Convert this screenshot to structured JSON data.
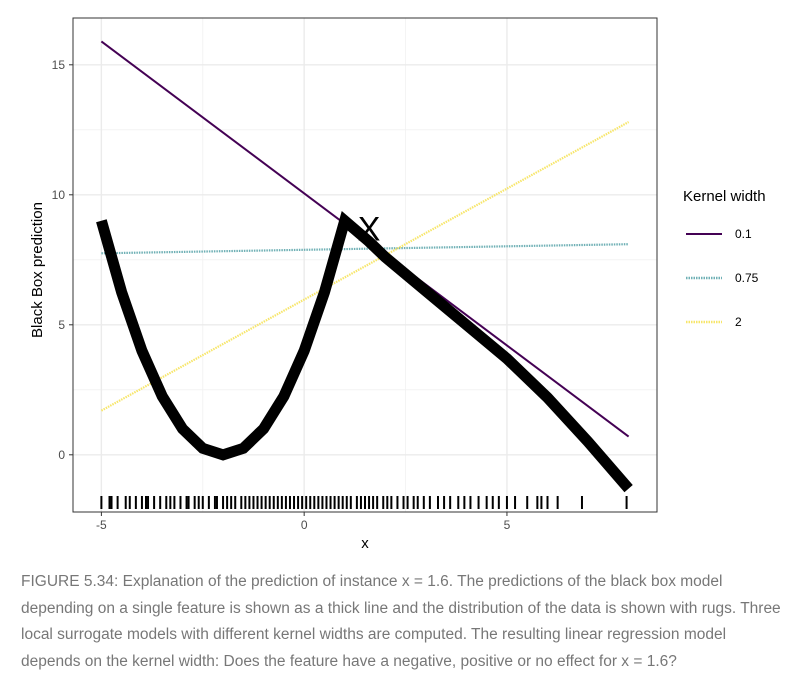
{
  "chart_data": {
    "type": "line",
    "xlabel": "x",
    "ylabel": "Black Box prediction",
    "xlim": [
      -5.7,
      8.7
    ],
    "ylim": [
      -2.2,
      16.8
    ],
    "x_ticks": [
      -5,
      0,
      5
    ],
    "y_ticks": [
      0,
      5,
      10,
      15
    ],
    "x_tick_labels": [
      "-5",
      "0",
      "5"
    ],
    "y_tick_labels": [
      "0",
      "5",
      "10",
      "15"
    ],
    "grid": true,
    "legend": {
      "title": "Kernel width",
      "placement": "right",
      "entries": [
        {
          "label": "0.1",
          "color": "#440154",
          "style": "solid"
        },
        {
          "label": "0.75",
          "color": "#6fb0b5",
          "style": "dotted"
        },
        {
          "label": "2",
          "color": "#f7e66a",
          "style": "dotted"
        }
      ]
    },
    "black_box": {
      "color": "#000000",
      "style": "thick",
      "x": [
        -5,
        -4.5,
        -4,
        -3.5,
        -3,
        -2.5,
        -2,
        -1.5,
        -1,
        -0.5,
        0,
        0.5,
        1,
        1.6,
        2,
        3,
        4,
        5,
        6,
        7,
        8
      ],
      "y": [
        9,
        6.25,
        4,
        2.25,
        1,
        0.25,
        0,
        0.25,
        1,
        2.25,
        4,
        6.25,
        9,
        8.2,
        7.6,
        6.3,
        5.0,
        3.7,
        2.2,
        0.5,
        -1.3
      ]
    },
    "series": [
      {
        "name": "0.1",
        "x": [
          -5,
          8
        ],
        "y": [
          15.9,
          0.7
        ]
      },
      {
        "name": "0.75",
        "x": [
          -5,
          8
        ],
        "y": [
          7.75,
          8.1
        ]
      },
      {
        "name": "2",
        "x": [
          -5,
          8
        ],
        "y": [
          1.7,
          12.8
        ]
      }
    ],
    "instance": {
      "label": "X",
      "x": 1.6,
      "y": 8.7
    },
    "rug_x": [
      -5.0,
      -4.8,
      -4.75,
      -4.6,
      -4.4,
      -4.3,
      -4.15,
      -4.0,
      -3.9,
      -3.85,
      -3.7,
      -3.55,
      -3.4,
      -3.3,
      -3.2,
      -3.05,
      -2.9,
      -2.85,
      -2.7,
      -2.6,
      -2.5,
      -2.35,
      -2.2,
      -2.15,
      -2.0,
      -1.9,
      -1.8,
      -1.7,
      -1.55,
      -1.45,
      -1.35,
      -1.25,
      -1.15,
      -1.05,
      -0.95,
      -0.85,
      -0.75,
      -0.65,
      -0.55,
      -0.45,
      -0.35,
      -0.25,
      -0.15,
      -0.05,
      0.05,
      0.15,
      0.25,
      0.35,
      0.45,
      0.55,
      0.65,
      0.75,
      0.85,
      0.95,
      1.05,
      1.15,
      1.3,
      1.4,
      1.5,
      1.6,
      1.7,
      1.8,
      1.95,
      2.05,
      2.15,
      2.3,
      2.45,
      2.55,
      2.7,
      2.8,
      2.95,
      3.1,
      3.3,
      3.45,
      3.6,
      3.8,
      3.95,
      4.1,
      4.3,
      4.5,
      4.65,
      4.8,
      5.0,
      5.2,
      5.5,
      5.75,
      5.85,
      6.0,
      6.25,
      6.85,
      7.95
    ]
  },
  "caption": "FIGURE 5.34: Explanation of the prediction of instance x = 1.6. The predictions of the black box model depending on a single feature is shown as a thick line and the distribution of the data is shown with rugs. Three local surrogate models with different kernel widths are computed. The resulting linear regression model depends on the kernel width: Does the feature have a negative, positive or no effect for x = 1.6?"
}
